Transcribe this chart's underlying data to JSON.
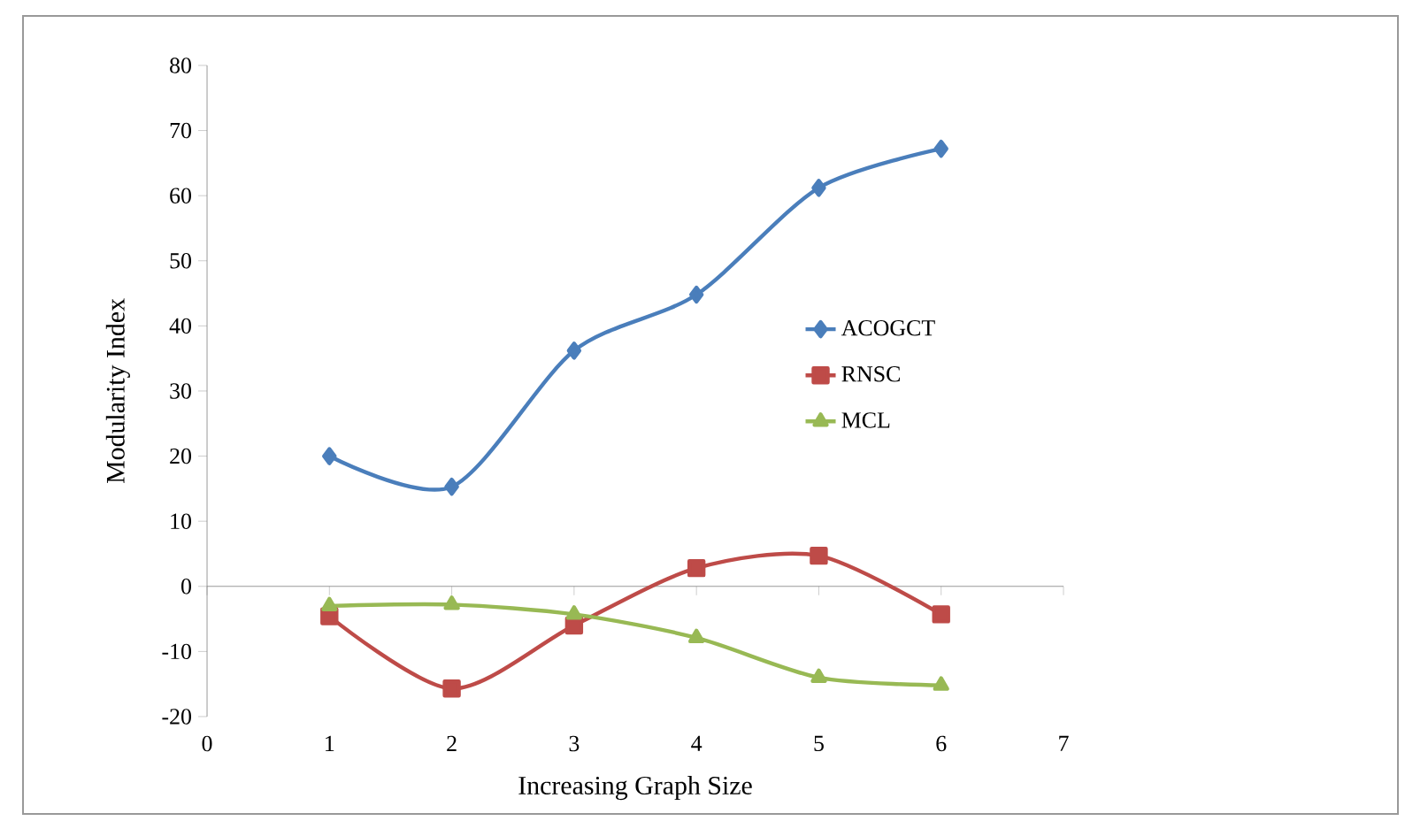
{
  "chart_data": {
    "type": "line",
    "xlabel": "Increasing Graph Size",
    "ylabel": "Modularity Index",
    "x": [
      1,
      2,
      3,
      4,
      5,
      6
    ],
    "series": [
      {
        "name": "ACOGCT",
        "color": "#4a7ebb",
        "marker": "diamond",
        "values": [
          20,
          15.3,
          36.2,
          44.8,
          61.2,
          67.2
        ]
      },
      {
        "name": "RNSC",
        "color": "#be4b48",
        "marker": "square",
        "values": [
          -4.6,
          -15.7,
          -6,
          2.8,
          4.7,
          -4.3
        ]
      },
      {
        "name": "MCL",
        "color": "#98b954",
        "marker": "triangle",
        "values": [
          -3,
          -2.8,
          -4.3,
          -7.9,
          -14,
          -15.2
        ]
      }
    ],
    "xlim": [
      0,
      7
    ],
    "xticks": [
      0,
      1,
      2,
      3,
      4,
      5,
      6,
      7
    ],
    "ylim": [
      -20,
      80
    ],
    "yticks": [
      -20,
      -10,
      0,
      10,
      20,
      30,
      40,
      50,
      60,
      70,
      80
    ],
    "legend": "right",
    "line_style": "solid"
  }
}
